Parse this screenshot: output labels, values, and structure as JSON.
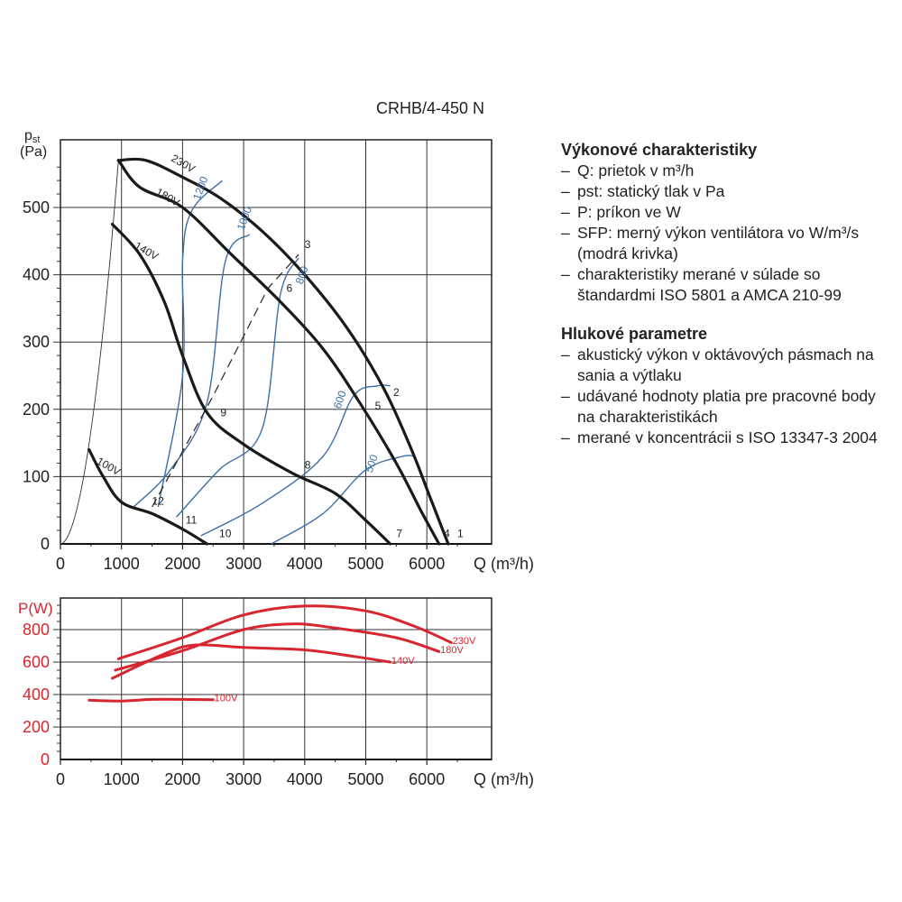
{
  "title": "CRHB/4-450 N",
  "side_panel": {
    "perf_heading": "Výkonové charakteristiky",
    "perf_items": [
      "Q: prietok v m³/h",
      "pst: statický tlak v Pa",
      "P: príkon ve W",
      "SFP: merný výkon ventilátora vo W/m³/s (modrá krivka)",
      "charakteristiky merané v súlade so štandardmi ISO 5801 a AMCA 210-99"
    ],
    "noise_heading": "Hlukové parametre",
    "noise_items": [
      "akustický výkon v oktávových pásmach na sania a výtlaku",
      "udávané hodnoty platia pre pracovné body na charakteristikách",
      "merané v koncentrácii s ISO 13347-3 2004"
    ]
  },
  "colors": {
    "pressure_curve": "#1a1a1a",
    "sfp_curve": "#3a6fa8",
    "power_curve": "#d7262f",
    "grid": "#333333"
  },
  "chart_data": [
    {
      "type": "line",
      "xlabel": "Q (m³/h)",
      "ylabel": "pst (Pa)",
      "xlim": [
        0,
        7000
      ],
      "ylim": [
        0,
        580
      ],
      "xticks": [
        0,
        1000,
        2000,
        3000,
        4000,
        5000,
        6000
      ],
      "yticks": [
        0,
        100,
        200,
        300,
        400,
        500
      ],
      "grid": true,
      "series": [
        {
          "name": "230V",
          "points": [
            [
              950,
              570
            ],
            [
              1400,
              570
            ],
            [
              2000,
              545
            ],
            [
              2600,
              515
            ],
            [
              3300,
              465
            ],
            [
              4000,
              400
            ],
            [
              4700,
              320
            ],
            [
              5300,
              230
            ],
            [
              5750,
              140
            ],
            [
              6050,
              70
            ],
            [
              6350,
              0
            ]
          ]
        },
        {
          "name": "180V",
          "points": [
            [
              950,
              570
            ],
            [
              1300,
              530
            ],
            [
              2000,
              500
            ],
            [
              2800,
              430
            ],
            [
              3600,
              360
            ],
            [
              4300,
              290
            ],
            [
              4900,
              210
            ],
            [
              5500,
              120
            ],
            [
              5900,
              50
            ],
            [
              6200,
              0
            ]
          ]
        },
        {
          "name": "140V",
          "points": [
            [
              850,
              475
            ],
            [
              1300,
              430
            ],
            [
              1700,
              360
            ],
            [
              2000,
              280
            ],
            [
              2400,
              195
            ],
            [
              3000,
              148
            ],
            [
              3800,
              105
            ],
            [
              4500,
              75
            ],
            [
              5000,
              35
            ],
            [
              5400,
              0
            ]
          ]
        },
        {
          "name": "100V",
          "points": [
            [
              470,
              140
            ],
            [
              700,
              100
            ],
            [
              1000,
              62
            ],
            [
              1500,
              45
            ],
            [
              2000,
              22
            ],
            [
              2400,
              0
            ]
          ]
        }
      ],
      "sfp_series": [
        {
          "name": "1200",
          "points": [
            [
              1600,
              55
            ],
            [
              2000,
              250
            ],
            [
              2000,
              420
            ],
            [
              2150,
              495
            ],
            [
              2650,
              540
            ]
          ]
        },
        {
          "name": "1000",
          "points": [
            [
              1200,
              55
            ],
            [
              1800,
              110
            ],
            [
              2400,
              210
            ],
            [
              2700,
              420
            ],
            [
              3100,
              460
            ]
          ]
        },
        {
          "name": "800",
          "points": [
            [
              1900,
              40
            ],
            [
              2600,
              110
            ],
            [
              3300,
              170
            ],
            [
              3600,
              370
            ],
            [
              3900,
              425
            ]
          ]
        },
        {
          "name": "600",
          "points": [
            [
              2300,
              12
            ],
            [
              3300,
              60
            ],
            [
              4300,
              130
            ],
            [
              4800,
              220
            ],
            [
              5200,
              235
            ],
            [
              5400,
              235
            ]
          ]
        },
        {
          "name": "500",
          "points": [
            [
              3450,
              0
            ],
            [
              4300,
              45
            ],
            [
              5000,
              110
            ],
            [
              5600,
              130
            ],
            [
              5800,
              130
            ]
          ]
        }
      ],
      "dashed_line": [
        [
          1500,
          55
        ],
        [
          2500,
          220
        ],
        [
          3400,
          380
        ],
        [
          3900,
          430
        ]
      ],
      "point_labels": [
        {
          "label": "1",
          "x": 6500,
          "y": 10
        },
        {
          "label": "2",
          "x": 5450,
          "y": 220
        },
        {
          "label": "3",
          "x": 4000,
          "y": 440
        },
        {
          "label": "4",
          "x": 6280,
          "y": 10
        },
        {
          "label": "5",
          "x": 5150,
          "y": 200
        },
        {
          "label": "6",
          "x": 3700,
          "y": 375
        },
        {
          "label": "7",
          "x": 5500,
          "y": 10
        },
        {
          "label": "8",
          "x": 4000,
          "y": 112
        },
        {
          "label": "9",
          "x": 2620,
          "y": 190
        },
        {
          "label": "10",
          "x": 2600,
          "y": 10
        },
        {
          "label": "11",
          "x": 2050,
          "y": 30
        },
        {
          "label": "12",
          "x": 1500,
          "y": 58
        }
      ],
      "curve_labels": [
        {
          "label": "230V",
          "x": 1800,
          "y": 570
        },
        {
          "label": "180V",
          "x": 1550,
          "y": 520
        },
        {
          "label": "140V",
          "x": 1200,
          "y": 440
        },
        {
          "label": "100V",
          "x": 580,
          "y": 120
        },
        {
          "label": "1200",
          "x": 2280,
          "y": 510
        },
        {
          "label": "1000",
          "x": 3000,
          "y": 465
        },
        {
          "label": "800",
          "x": 3960,
          "y": 385
        },
        {
          "label": "600",
          "x": 4580,
          "y": 200
        },
        {
          "label": "500",
          "x": 5100,
          "y": 105
        }
      ]
    },
    {
      "type": "line",
      "xlabel": "Q (m³/h)",
      "ylabel": "P(W)",
      "xlim": [
        0,
        7000
      ],
      "ylim": [
        0,
        1000
      ],
      "xticks": [
        0,
        1000,
        2000,
        3000,
        4000,
        5000,
        6000
      ],
      "yticks": [
        0,
        200,
        400,
        600,
        800
      ],
      "grid": true,
      "series": [
        {
          "name": "230V",
          "points": [
            [
              950,
              620
            ],
            [
              2000,
              750
            ],
            [
              3000,
              890
            ],
            [
              4000,
              945
            ],
            [
              5000,
              915
            ],
            [
              5800,
              820
            ],
            [
              6400,
              720
            ]
          ]
        },
        {
          "name": "180V",
          "points": [
            [
              900,
              550
            ],
            [
              2000,
              670
            ],
            [
              3000,
              800
            ],
            [
              3800,
              835
            ],
            [
              4500,
              810
            ],
            [
              5500,
              750
            ],
            [
              6200,
              665
            ]
          ]
        },
        {
          "name": "140V",
          "points": [
            [
              850,
              500
            ],
            [
              1700,
              650
            ],
            [
              2200,
              705
            ],
            [
              3000,
              690
            ],
            [
              4000,
              675
            ],
            [
              4800,
              635
            ],
            [
              5400,
              600
            ]
          ]
        },
        {
          "name": "100V",
          "points": [
            [
              470,
              365
            ],
            [
              1000,
              360
            ],
            [
              1500,
              370
            ],
            [
              2000,
              370
            ],
            [
              2500,
              368
            ]
          ]
        }
      ],
      "curve_labels": [
        {
          "label": "230V",
          "x": 6420,
          "y": 710
        },
        {
          "label": "180V",
          "x": 6220,
          "y": 655
        },
        {
          "label": "140V",
          "x": 5420,
          "y": 590
        },
        {
          "label": "100V",
          "x": 2520,
          "y": 358
        }
      ]
    }
  ]
}
